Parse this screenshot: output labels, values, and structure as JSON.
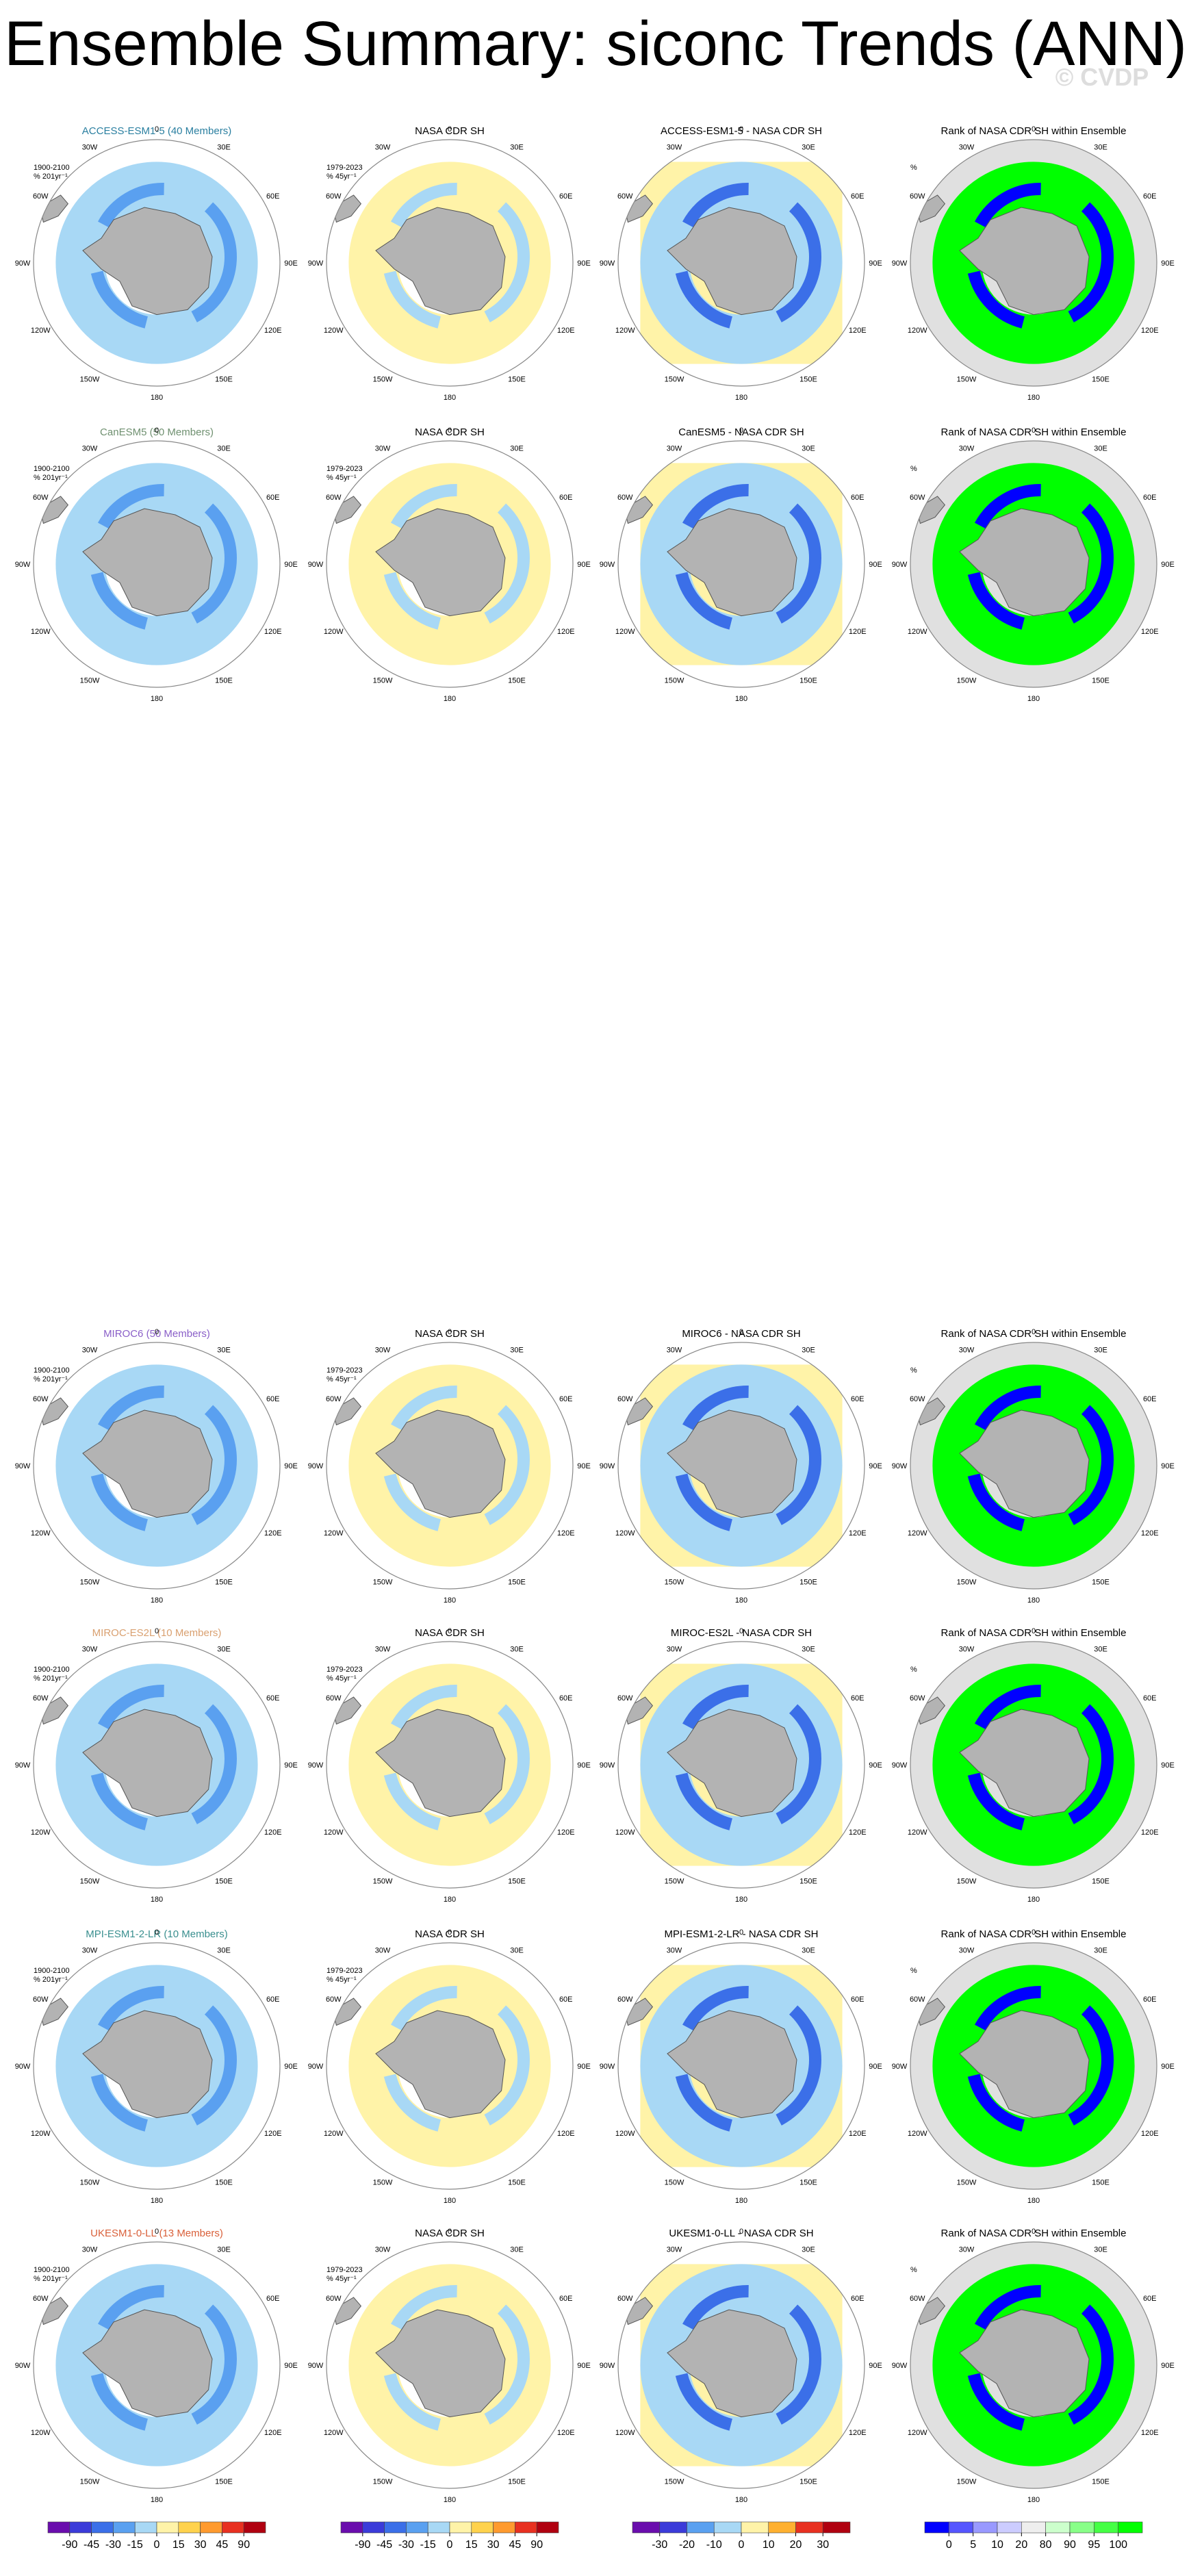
{
  "title": "Ensemble Summary: siconc Trends (ANN)",
  "watermark": "© CVDP",
  "lon_labels": [
    "0",
    "30E",
    "60E",
    "90E",
    "120E",
    "150E",
    "180",
    "150W",
    "120W",
    "90W",
    "60W",
    "30W"
  ],
  "panel_notes": {
    "model": [
      "1900-2100",
      "% 201yr⁻¹"
    ],
    "obs": [
      "1979-2023",
      "% 45yr⁻¹"
    ],
    "rank": [
      "%"
    ]
  },
  "rows": [
    {
      "model": "ACCESS-ESM1-5 (40 Members)",
      "model_color": "#2a7fa0",
      "panels": [
        "NASA CDR SH",
        "ACCESS-ESM1-5 - NASA CDR SH",
        "Rank of NASA CDR SH within Ensemble"
      ]
    },
    {
      "model": "CanESM5 (50 Members)",
      "model_color": "#6f9070",
      "panels": [
        "NASA CDR SH",
        "CanESM5 - NASA CDR SH",
        "Rank of NASA CDR SH within Ensemble"
      ]
    },
    {
      "model": "MIROC6 (50 Members)",
      "model_color": "#8a5fc8",
      "panels": [
        "NASA CDR SH",
        "MIROC6 - NASA CDR SH",
        "Rank of NASA CDR SH within Ensemble"
      ]
    },
    {
      "model": "MIROC-ES2L (10 Members)",
      "model_color": "#d9a070",
      "panels": [
        "NASA CDR SH",
        "MIROC-ES2L - NASA CDR SH",
        "Rank of NASA CDR SH within Ensemble"
      ]
    },
    {
      "model": "MPI-ESM1-2-LR (10 Members)",
      "model_color": "#3a8f8f",
      "panels": [
        "NASA CDR SH",
        "MPI-ESM1-2-LR - NASA CDR SH",
        "Rank of NASA CDR SH within Ensemble"
      ]
    },
    {
      "model": "UKESM1-0-LL (13 Members)",
      "model_color": "#d9603a",
      "panels": [
        "NASA CDR SH",
        "UKESM1-0-LL - NASA CDR SH",
        "Rank of NASA CDR SH within Ensemble"
      ]
    }
  ],
  "colorbars": [
    {
      "ticks": [
        -90,
        -45,
        -30,
        -15,
        0,
        15,
        30,
        45,
        90
      ],
      "colors": [
        "#6a0dad",
        "#3b3bd9",
        "#3b6fe8",
        "#5aa0f0",
        "#a8d8f5",
        "#fff3a8",
        "#ffd24d",
        "#ff9a2e",
        "#e83020",
        "#b00010"
      ]
    },
    {
      "ticks": [
        -90,
        -45,
        -30,
        -15,
        0,
        15,
        30,
        45,
        90
      ],
      "colors": [
        "#6a0dad",
        "#3b3bd9",
        "#3b6fe8",
        "#5aa0f0",
        "#a8d8f5",
        "#fff3a8",
        "#ffd24d",
        "#ff9a2e",
        "#e83020",
        "#b00010"
      ]
    },
    {
      "ticks": [
        -30,
        -20,
        -10,
        0,
        10,
        20,
        30
      ],
      "colors": [
        "#6a0dad",
        "#3b3bd9",
        "#5aa0f0",
        "#a8d8f5",
        "#fff3a8",
        "#ffb030",
        "#e83020",
        "#b00010"
      ]
    },
    {
      "ticks": [
        0,
        5,
        10,
        20,
        80,
        90,
        95,
        100
      ],
      "colors": [
        "#0000ff",
        "#5555ff",
        "#9999ff",
        "#ccccff",
        "#eeeeee",
        "#ccffcc",
        "#88ff88",
        "#44ff44",
        "#00ff00"
      ]
    }
  ]
}
